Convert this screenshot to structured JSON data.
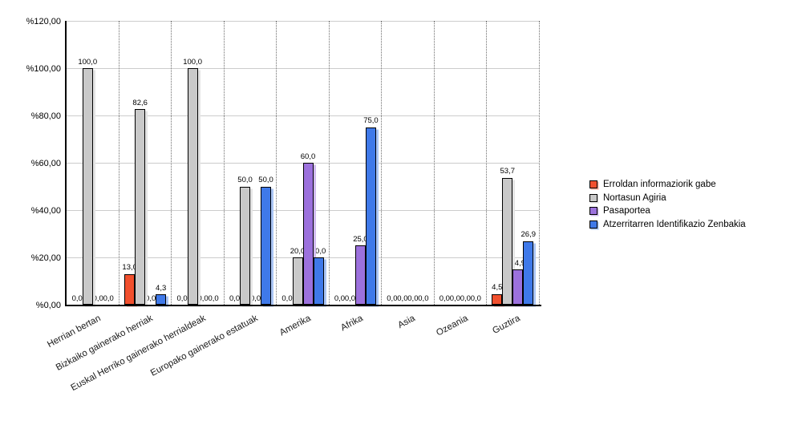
{
  "chart_data": {
    "type": "bar",
    "title": "",
    "xlabel": "",
    "ylabel": "",
    "ylim": [
      0,
      120
    ],
    "grid": {
      "horizontal": "solid",
      "vertical": "dotted"
    },
    "legend_position": "right",
    "categories": [
      "Herrian bertan",
      "Bizkaiko gainerako herriak",
      "Euskal Herriko gainerako herrialdeak",
      "Europako gainerako estatuak",
      "Amerika",
      "Afrika",
      "Asia",
      "Ozeania",
      "Guztira"
    ],
    "y_ticks": [
      {
        "value": 0,
        "label": "%0,00"
      },
      {
        "value": 20,
        "label": "%20,00"
      },
      {
        "value": 40,
        "label": "%40,00"
      },
      {
        "value": 60,
        "label": "%60,00"
      },
      {
        "value": 80,
        "label": "%80,00"
      },
      {
        "value": 100,
        "label": "%100,00"
      },
      {
        "value": 120,
        "label": "%120,00"
      }
    ],
    "series": [
      {
        "name": "Erroldan informaziorik gabe",
        "color": "#F1502E",
        "shadow_color": "#F8AE9C",
        "values": [
          0,
          13.0,
          0,
          0,
          0,
          0,
          0,
          0,
          4.5
        ],
        "value_labels": [
          "0,0",
          "13,0",
          "0,0",
          "0,0",
          "0,0",
          "0,0",
          "0,0",
          "0,0",
          "4,5"
        ]
      },
      {
        "name": "Nortasun Agiria",
        "color": "#C9C9C9",
        "shadow_color": "#E4E4E4",
        "values": [
          100.0,
          82.6,
          100.0,
          50.0,
          20.0,
          0,
          0,
          0,
          53.7
        ],
        "value_labels": [
          "100,0",
          "82,6",
          "100,0",
          "50,0",
          "20,0",
          "0,0",
          "0,0",
          "0,0",
          "53,7"
        ]
      },
      {
        "name": "Pasaportea",
        "color": "#9C71DD",
        "shadow_color": "#D1BCEF",
        "values": [
          0,
          0,
          0,
          0,
          60.0,
          25.0,
          0,
          0,
          14.9
        ],
        "value_labels": [
          "0,0",
          "0,0",
          "0,0",
          "0,0",
          "60,0",
          "25,0",
          "0,0",
          "0,0",
          "14,9"
        ]
      },
      {
        "name": "Atzerritarren Identifikazio Zenbakia",
        "color": "#3F79E9",
        "shadow_color": "#AAC5F5",
        "values": [
          0,
          4.3,
          0,
          50.0,
          20.0,
          75.0,
          0,
          0,
          26.9
        ],
        "value_labels": [
          "0,0",
          "4,3",
          "0,0",
          "50,0",
          "20,0",
          "75,0",
          "0,0",
          "0,0",
          "26,9"
        ]
      }
    ]
  }
}
